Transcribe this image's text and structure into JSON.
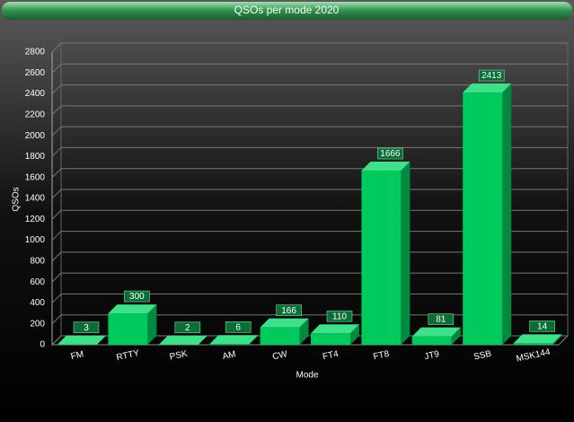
{
  "chart_data": {
    "type": "bar3d",
    "title": "QSOs per mode 2020",
    "x_label": "Mode",
    "y_label": "QSOs",
    "categories": [
      "FM",
      "RTTY",
      "PSK",
      "AM",
      "CW",
      "FT4",
      "FT8",
      "JT9",
      "SSB",
      "MSK144"
    ],
    "values": [
      3,
      300,
      2,
      6,
      166,
      110,
      1666,
      81,
      2413,
      14
    ],
    "color": "#00c95e",
    "ylim": [
      0,
      2800
    ],
    "yticks": [
      0,
      200,
      400,
      600,
      800,
      1000,
      1200,
      1400,
      1600,
      1800,
      2000,
      2200,
      2400,
      2600,
      2800
    ],
    "grid": true
  }
}
